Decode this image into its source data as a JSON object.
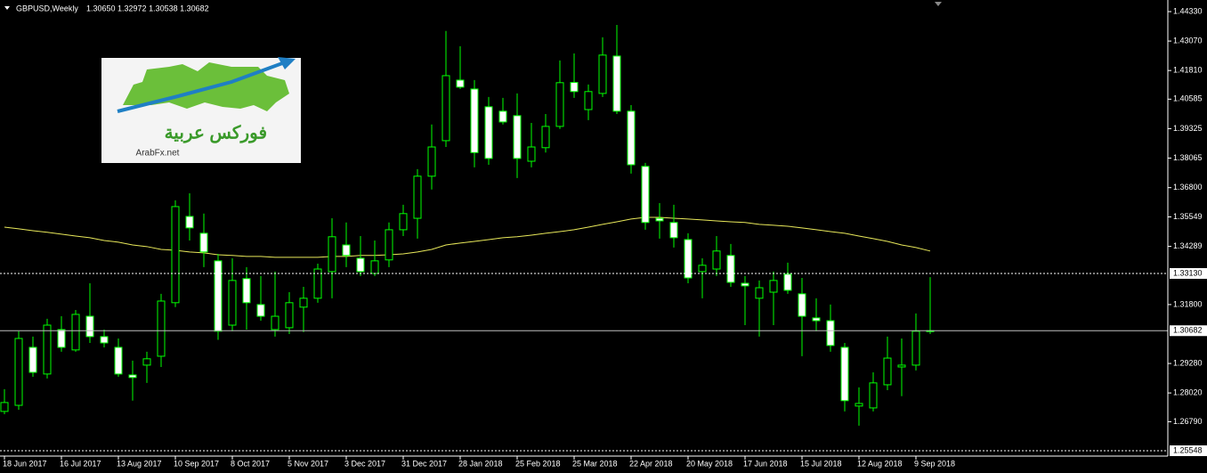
{
  "chart_data": {
    "type": "candlestick",
    "title": "GBPUSD,Weekly",
    "info": "1.30650 1.32972 1.30538 1.30682",
    "logo": {
      "arabic": "فوركس عربية",
      "site": "ArabFx.net"
    },
    "categories": [
      "18 Jun 2017",
      null,
      null,
      null,
      "16 Jul 2017",
      null,
      null,
      null,
      "13 Aug 2017",
      null,
      null,
      null,
      "10 Sep 2017",
      null,
      null,
      null,
      "8 Oct 2017",
      null,
      null,
      null,
      "5 Nov 2017",
      null,
      null,
      null,
      "3 Dec 2017",
      null,
      null,
      null,
      "31 Dec 2017",
      null,
      null,
      null,
      "28 Jan 2018",
      null,
      null,
      null,
      "25 Feb 2018",
      null,
      null,
      null,
      "25 Mar 2018",
      null,
      null,
      null,
      "22 Apr 2018",
      null,
      null,
      null,
      "20 May 2018",
      null,
      null,
      null,
      "17 Jun 2018",
      null,
      null,
      null,
      "15 Jul 2018",
      null,
      null,
      null,
      "12 Aug 2018",
      null,
      null,
      null,
      "9 Sep 2018",
      null
    ],
    "open": [
      1.2723,
      1.2749,
      1.2997,
      1.2883,
      1.3073,
      1.2986,
      1.313,
      1.3043,
      1.2997,
      1.2879,
      1.2921,
      1.2959,
      1.3188,
      1.3557,
      1.3485,
      1.3367,
      1.3092,
      1.3291,
      1.318,
      1.3073,
      1.3081,
      1.3169,
      1.3207,
      1.3321,
      1.3435,
      1.3378,
      1.3313,
      1.3371,
      1.35,
      1.3549,
      1.3729,
      1.3881,
      1.414,
      1.4102,
      1.4026,
      1.4007,
      1.3988,
      1.3793,
      1.3851,
      1.3942,
      1.413,
      1.4014,
      1.4083,
      1.4243,
      1.4007,
      1.3771,
      1.3549,
      1.3531,
      1.3458,
      1.3321,
      1.3332,
      1.339,
      1.3271,
      1.3207,
      1.3233,
      1.331,
      1.3226,
      1.3123,
      1.3111,
      1.2997,
      1.2746,
      1.2738,
      1.2837,
      1.2913,
      1.2921,
      1.3065
    ],
    "high": [
      1.2818,
      1.3066,
      1.3043,
      1.3119,
      1.313,
      1.3157,
      1.3271,
      1.3073,
      1.3035,
      1.294,
      1.2978,
      1.3226,
      1.3626,
      1.3656,
      1.3569,
      1.3397,
      1.3378,
      1.334,
      1.3302,
      1.3321,
      1.3233,
      1.3256,
      1.3355,
      1.3549,
      1.3531,
      1.3473,
      1.3454,
      1.3531,
      1.3607,
      1.3759,
      1.395,
      1.435,
      1.4285,
      1.414,
      1.4068,
      1.4064,
      1.4083,
      1.3957,
      1.3995,
      1.4224,
      1.4254,
      1.4121,
      1.4323,
      1.4376,
      1.4033,
      1.3786,
      1.3614,
      1.3607,
      1.3485,
      1.3378,
      1.3473,
      1.3439,
      1.3302,
      1.3283,
      1.3321,
      1.3359,
      1.3294,
      1.3207,
      1.318,
      1.3016,
      1.2826,
      1.289,
      1.3043,
      1.3035,
      1.3142,
      1.32972
    ],
    "low": [
      1.2711,
      1.273,
      1.2871,
      1.2864,
      1.2978,
      1.2978,
      1.3016,
      1.2997,
      1.2871,
      1.2769,
      1.2845,
      1.2913,
      1.3169,
      1.3454,
      1.334,
      1.3029,
      1.3066,
      1.3073,
      1.3111,
      1.3043,
      1.3054,
      1.3062,
      1.3188,
      1.3207,
      1.334,
      1.3302,
      1.3302,
      1.334,
      1.3473,
      1.3462,
      1.3672,
      1.3854,
      1.4102,
      1.3767,
      1.3778,
      1.395,
      1.3721,
      1.3767,
      1.383,
      1.3931,
      1.4064,
      1.3969,
      1.4068,
      1.3995,
      1.374,
      1.35,
      1.3462,
      1.3424,
      1.3271,
      1.3207,
      1.3302,
      1.3256,
      1.3092,
      1.3043,
      1.3092,
      1.3226,
      1.2959,
      1.3066,
      1.2978,
      1.2723,
      1.2662,
      1.2723,
      1.2814,
      1.2788,
      1.2898,
      1.30538
    ],
    "close": [
      1.2761,
      1.3035,
      1.289,
      1.3092,
      1.2997,
      1.3138,
      1.3043,
      1.3016,
      1.2883,
      1.2868,
      1.2948,
      1.3195,
      1.3599,
      1.3508,
      1.3405,
      1.3066,
      1.3283,
      1.3188,
      1.313,
      1.313,
      1.3188,
      1.3207,
      1.3332,
      1.347,
      1.339,
      1.3321,
      1.3367,
      1.35,
      1.3569,
      1.3729,
      1.3854,
      1.4159,
      1.411,
      1.383,
      1.3805,
      1.3961,
      1.3805,
      1.3854,
      1.3942,
      1.4129,
      1.4091,
      1.4091,
      1.4247,
      1.4007,
      1.3778,
      1.3531,
      1.3538,
      1.3466,
      1.3294,
      1.3348,
      1.3409,
      1.3275,
      1.326,
      1.3252,
      1.3283,
      1.3241,
      1.313,
      1.3111,
      1.3005,
      1.2769,
      1.2757,
      1.2845,
      1.2951,
      1.2921,
      1.3066,
      1.30682
    ],
    "ma": {
      "color": "#e8e85a",
      "values": [
        1.3511,
        1.3504,
        1.3496,
        1.3489,
        1.3481,
        1.3473,
        1.3466,
        1.3454,
        1.3447,
        1.3435,
        1.3428,
        1.3416,
        1.3412,
        1.3405,
        1.3401,
        1.3393,
        1.339,
        1.3386,
        1.3386,
        1.3382,
        1.3382,
        1.3382,
        1.3382,
        1.3386,
        1.3386,
        1.339,
        1.339,
        1.3393,
        1.3397,
        1.3405,
        1.3416,
        1.3435,
        1.3443,
        1.345,
        1.3458,
        1.3466,
        1.347,
        1.3477,
        1.3485,
        1.3492,
        1.35,
        1.3511,
        1.3523,
        1.3534,
        1.3546,
        1.3553,
        1.3553,
        1.3549,
        1.3546,
        1.3542,
        1.3538,
        1.3534,
        1.3531,
        1.3523,
        1.3519,
        1.3515,
        1.3508,
        1.35,
        1.3492,
        1.3485,
        1.3473,
        1.3462,
        1.345,
        1.3435,
        1.3424,
        1.3409
      ]
    },
    "bull_color": "#000000",
    "bear_color": "#ffffff",
    "outline_color": "#00ff00",
    "ylim": [
      1.2532,
      1.4475
    ],
    "yticks": [
      {
        "value": 1.4433,
        "label": "1.44330"
      },
      {
        "value": 1.4307,
        "label": "1.43070"
      },
      {
        "value": 1.4181,
        "label": "1.41810"
      },
      {
        "value": 1.40585,
        "label": "1.40585"
      },
      {
        "value": 1.39325,
        "label": "1.39325"
      },
      {
        "value": 1.38065,
        "label": "1.38065"
      },
      {
        "value": 1.368,
        "label": "1.36800"
      },
      {
        "value": 1.35549,
        "label": "1.35549"
      },
      {
        "value": 1.34289,
        "label": "1.34289"
      },
      {
        "value": 1.318,
        "label": "1.31800"
      },
      {
        "value": 1.2928,
        "label": "1.29280"
      },
      {
        "value": 1.2802,
        "label": "1.28020"
      },
      {
        "value": 1.2679,
        "label": "1.26790"
      }
    ],
    "hlines": [
      {
        "value": 1.3313,
        "label": "1.33130",
        "style": "dashed"
      },
      {
        "value": 1.30682,
        "label": "1.30682",
        "style": "solid"
      },
      {
        "value": 1.25548,
        "label": "1.25548",
        "style": "dashed"
      }
    ]
  }
}
